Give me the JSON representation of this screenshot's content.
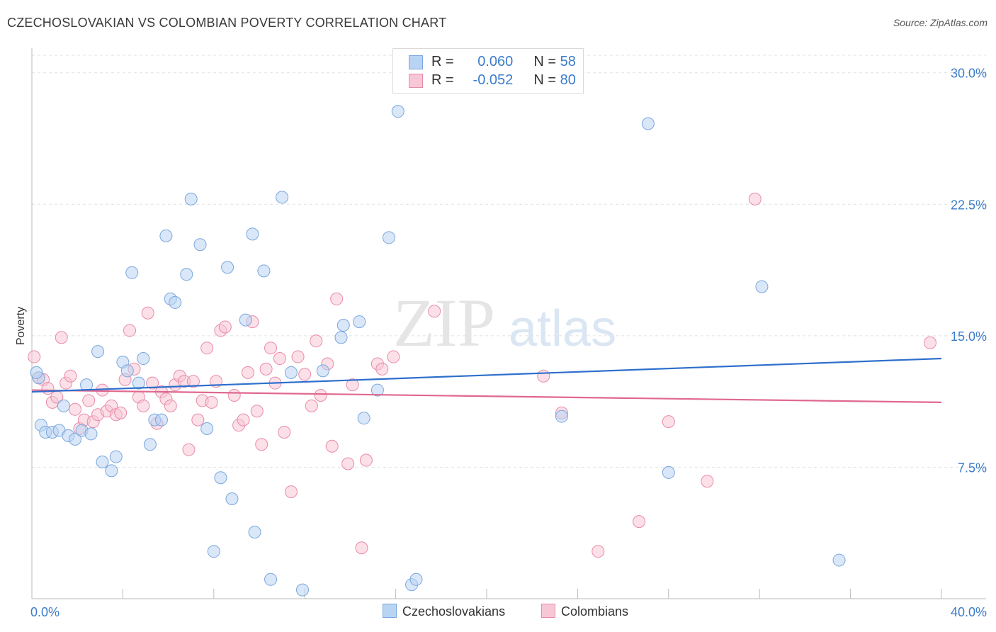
{
  "title": "CZECHOSLOVAKIAN VS COLOMBIAN POVERTY CORRELATION CHART",
  "source": "Source: ZipAtlas.com",
  "watermark": {
    "zip": "ZIP",
    "atlas": "atlas"
  },
  "colors": {
    "blue_fill": "#b9d3f3",
    "blue_stroke": "#7aa7dd",
    "blue_line": "#2e6fcc",
    "pink_fill": "#f7c7d6",
    "pink_stroke": "#e98aa9",
    "pink_line": "#e0688e",
    "tick_text": "#3d7cc9",
    "grid": "#e1e1e1"
  },
  "legend": {
    "rows": [
      {
        "r_label": "R =",
        "r_value": "0.060",
        "n_label": "N =",
        "n_value": "58"
      },
      {
        "r_label": "R =",
        "r_value": "-0.052",
        "n_label": "N =",
        "n_value": "80"
      }
    ]
  },
  "bottom_legend": [
    "Czechoslovakians",
    "Colombians"
  ],
  "chart_data": {
    "type": "scatter",
    "title": "CZECHOSLOVAKIAN VS COLOMBIAN POVERTY CORRELATION CHART",
    "xlabel": "",
    "ylabel": "Poverty",
    "xlim": [
      0,
      40
    ],
    "ylim": [
      0,
      31.0
    ],
    "x_tick_labels": [
      "0.0%",
      "40.0%"
    ],
    "y_ticks": [
      7.5,
      15.0,
      22.5,
      30.0
    ],
    "y_tick_labels": [
      "7.5%",
      "15.0%",
      "22.5%",
      "30.0%"
    ],
    "grid": true,
    "legend_position": "top-center",
    "series": [
      {
        "name": "Czechoslovakians",
        "regression": {
          "x": [
            0,
            40
          ],
          "y": [
            11.8,
            13.7
          ]
        },
        "points": [
          [
            0.3,
            12.6
          ],
          [
            0.4,
            9.9
          ],
          [
            0.6,
            9.5
          ],
          [
            0.9,
            9.5
          ],
          [
            1.2,
            9.6
          ],
          [
            1.4,
            11.0
          ],
          [
            1.6,
            9.3
          ],
          [
            1.9,
            9.1
          ],
          [
            2.2,
            9.6
          ],
          [
            2.4,
            12.2
          ],
          [
            2.6,
            9.4
          ],
          [
            2.9,
            14.1
          ],
          [
            3.1,
            7.8
          ],
          [
            3.5,
            7.3
          ],
          [
            3.7,
            8.1
          ],
          [
            4.0,
            13.5
          ],
          [
            4.2,
            13.0
          ],
          [
            4.4,
            18.6
          ],
          [
            4.7,
            12.3
          ],
          [
            4.9,
            13.7
          ],
          [
            5.2,
            8.8
          ],
          [
            5.4,
            10.2
          ],
          [
            5.7,
            10.2
          ],
          [
            5.9,
            20.7
          ],
          [
            6.1,
            17.1
          ],
          [
            6.3,
            16.9
          ],
          [
            6.8,
            18.5
          ],
          [
            7.0,
            22.8
          ],
          [
            7.4,
            20.2
          ],
          [
            7.7,
            9.7
          ],
          [
            8.0,
            2.7
          ],
          [
            8.3,
            6.9
          ],
          [
            8.6,
            18.9
          ],
          [
            8.8,
            5.7
          ],
          [
            9.4,
            15.9
          ],
          [
            9.7,
            20.8
          ],
          [
            9.8,
            3.8
          ],
          [
            10.2,
            18.7
          ],
          [
            10.5,
            1.1
          ],
          [
            11.0,
            22.9
          ],
          [
            11.4,
            12.9
          ],
          [
            11.9,
            0.5
          ],
          [
            12.8,
            13.0
          ],
          [
            13.6,
            14.9
          ],
          [
            13.7,
            15.6
          ],
          [
            14.4,
            15.8
          ],
          [
            14.6,
            10.3
          ],
          [
            15.2,
            11.9
          ],
          [
            15.7,
            20.6
          ],
          [
            16.1,
            27.8
          ],
          [
            16.7,
            0.8
          ],
          [
            16.9,
            1.1
          ],
          [
            23.3,
            10.4
          ],
          [
            27.1,
            27.1
          ],
          [
            28.0,
            7.2
          ],
          [
            32.1,
            17.8
          ],
          [
            35.5,
            2.2
          ],
          [
            0.2,
            12.9
          ]
        ]
      },
      {
        "name": "Colombians",
        "regression": {
          "x": [
            0,
            40
          ],
          "y": [
            11.9,
            11.2
          ]
        },
        "points": [
          [
            0.1,
            13.8
          ],
          [
            0.3,
            12.6
          ],
          [
            0.5,
            12.5
          ],
          [
            0.7,
            12.0
          ],
          [
            0.9,
            11.2
          ],
          [
            1.1,
            11.5
          ],
          [
            1.3,
            14.9
          ],
          [
            1.5,
            12.3
          ],
          [
            1.7,
            12.7
          ],
          [
            1.9,
            10.8
          ],
          [
            2.1,
            9.7
          ],
          [
            2.3,
            10.2
          ],
          [
            2.5,
            11.3
          ],
          [
            2.7,
            10.1
          ],
          [
            2.9,
            10.5
          ],
          [
            3.1,
            11.9
          ],
          [
            3.3,
            10.7
          ],
          [
            3.5,
            11.0
          ],
          [
            3.7,
            10.5
          ],
          [
            3.9,
            10.6
          ],
          [
            4.1,
            12.5
          ],
          [
            4.3,
            15.3
          ],
          [
            4.5,
            13.1
          ],
          [
            4.7,
            11.5
          ],
          [
            4.9,
            11.0
          ],
          [
            5.1,
            16.3
          ],
          [
            5.3,
            12.3
          ],
          [
            5.5,
            10.0
          ],
          [
            5.7,
            11.8
          ],
          [
            5.9,
            11.4
          ],
          [
            6.1,
            11.0
          ],
          [
            6.3,
            12.2
          ],
          [
            6.5,
            12.7
          ],
          [
            6.7,
            12.4
          ],
          [
            6.9,
            8.5
          ],
          [
            7.1,
            12.4
          ],
          [
            7.3,
            10.2
          ],
          [
            7.5,
            11.3
          ],
          [
            7.7,
            14.3
          ],
          [
            7.9,
            11.2
          ],
          [
            8.1,
            12.4
          ],
          [
            8.3,
            15.3
          ],
          [
            8.5,
            15.5
          ],
          [
            8.9,
            11.6
          ],
          [
            9.1,
            9.9
          ],
          [
            9.3,
            10.2
          ],
          [
            9.5,
            12.9
          ],
          [
            9.7,
            15.8
          ],
          [
            9.9,
            10.7
          ],
          [
            10.1,
            8.8
          ],
          [
            10.3,
            13.1
          ],
          [
            10.5,
            14.3
          ],
          [
            10.7,
            12.3
          ],
          [
            10.9,
            13.7
          ],
          [
            11.1,
            9.5
          ],
          [
            11.4,
            6.1
          ],
          [
            11.7,
            13.8
          ],
          [
            12.0,
            12.8
          ],
          [
            12.3,
            11.0
          ],
          [
            12.5,
            14.7
          ],
          [
            12.7,
            11.6
          ],
          [
            13.0,
            13.4
          ],
          [
            13.2,
            8.7
          ],
          [
            13.4,
            17.1
          ],
          [
            13.9,
            7.7
          ],
          [
            14.1,
            12.2
          ],
          [
            14.5,
            2.9
          ],
          [
            14.7,
            7.9
          ],
          [
            15.2,
            13.4
          ],
          [
            15.4,
            13.1
          ],
          [
            15.9,
            13.8
          ],
          [
            17.7,
            16.4
          ],
          [
            22.5,
            12.7
          ],
          [
            23.3,
            10.6
          ],
          [
            24.9,
            2.7
          ],
          [
            26.7,
            4.4
          ],
          [
            28.0,
            10.1
          ],
          [
            29.7,
            6.7
          ],
          [
            31.8,
            22.8
          ],
          [
            39.5,
            14.6
          ]
        ]
      }
    ]
  }
}
